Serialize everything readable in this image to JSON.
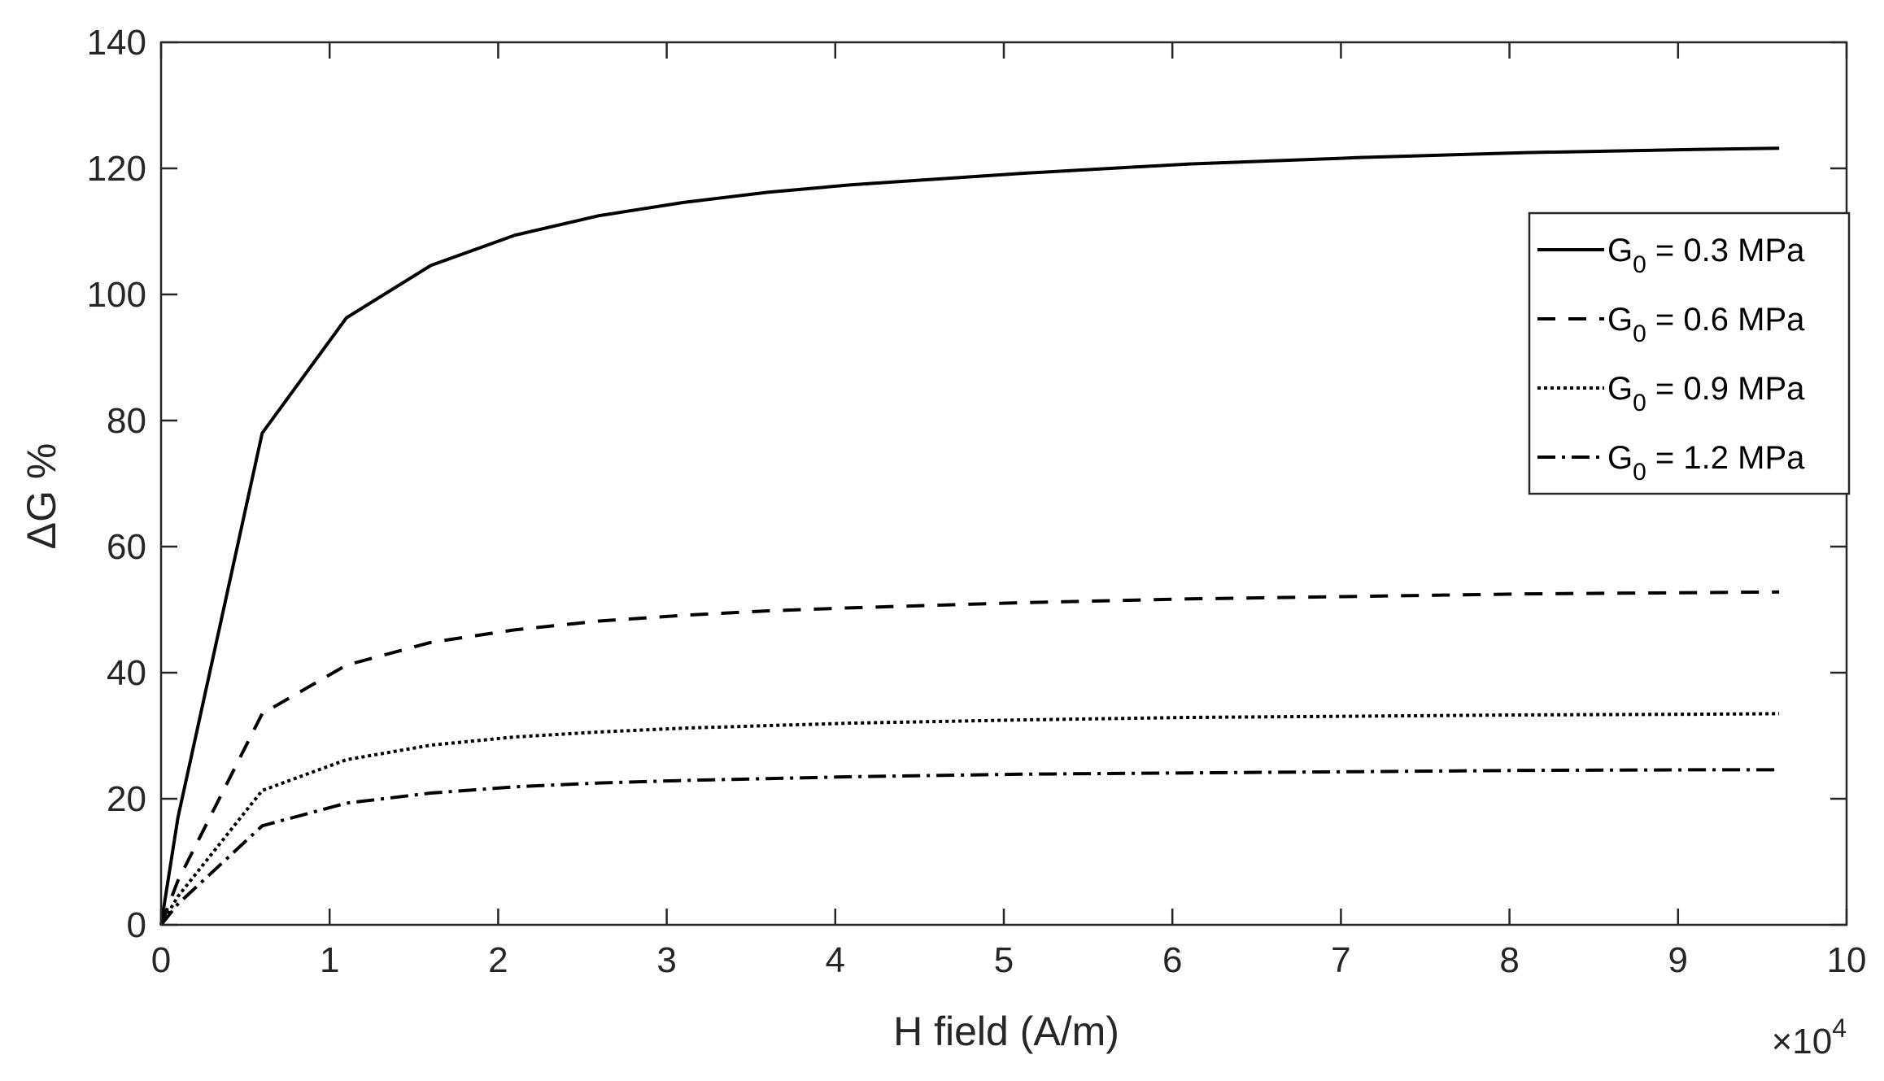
{
  "chart_data": {
    "type": "line",
    "title": "",
    "xlabel": "H field (A/m)",
    "ylabel": "ΔG %",
    "x_exponent_prefix": "×10",
    "x_exponent": "4",
    "x_scale": 10000,
    "xlim": [
      0,
      10
    ],
    "ylim": [
      0,
      140
    ],
    "xticks": [
      0,
      1,
      2,
      3,
      4,
      5,
      6,
      7,
      8,
      9,
      10
    ],
    "yticks": [
      0,
      20,
      40,
      60,
      80,
      100,
      120,
      140
    ],
    "grid": false,
    "legend_position": "top-right",
    "x": [
      0,
      0.1,
      0.6,
      1.1,
      1.6,
      2.1,
      2.6,
      3.1,
      3.6,
      4.1,
      5.1,
      6.1,
      7.1,
      8.1,
      9.1,
      9.6
    ],
    "series": [
      {
        "name_main": "G",
        "name_sub": "0",
        "name_rest": " = 0.3 MPa",
        "style": "solid",
        "color": "#000000",
        "values": [
          0,
          17,
          78,
          96.3,
          104.6,
          109.4,
          112.5,
          114.6,
          116.2,
          117.4,
          119.2,
          120.7,
          121.7,
          122.5,
          123.0,
          123.2
        ]
      },
      {
        "name_main": "G",
        "name_sub": "0",
        "name_rest": " = 0.6 MPa",
        "style": "dashed",
        "color": "#000000",
        "values": [
          0,
          7,
          33.5,
          41.2,
          44.8,
          46.8,
          48.2,
          49.1,
          49.8,
          50.3,
          51.1,
          51.7,
          52.1,
          52.5,
          52.7,
          52.8
        ]
      },
      {
        "name_main": "G",
        "name_sub": "0",
        "name_rest": " = 0.9 MPa",
        "style": "dotted",
        "color": "#000000",
        "values": [
          0,
          4.5,
          21.3,
          26.2,
          28.5,
          29.8,
          30.6,
          31.2,
          31.6,
          32.0,
          32.5,
          32.9,
          33.1,
          33.3,
          33.4,
          33.5
        ]
      },
      {
        "name_main": "G",
        "name_sub": "0",
        "name_rest": " = 1.2 MPa",
        "style": "dashdot",
        "color": "#000000",
        "values": [
          0,
          3.3,
          15.7,
          19.3,
          20.9,
          21.9,
          22.5,
          22.9,
          23.2,
          23.5,
          23.9,
          24.1,
          24.3,
          24.5,
          24.6,
          24.6
        ]
      }
    ]
  }
}
